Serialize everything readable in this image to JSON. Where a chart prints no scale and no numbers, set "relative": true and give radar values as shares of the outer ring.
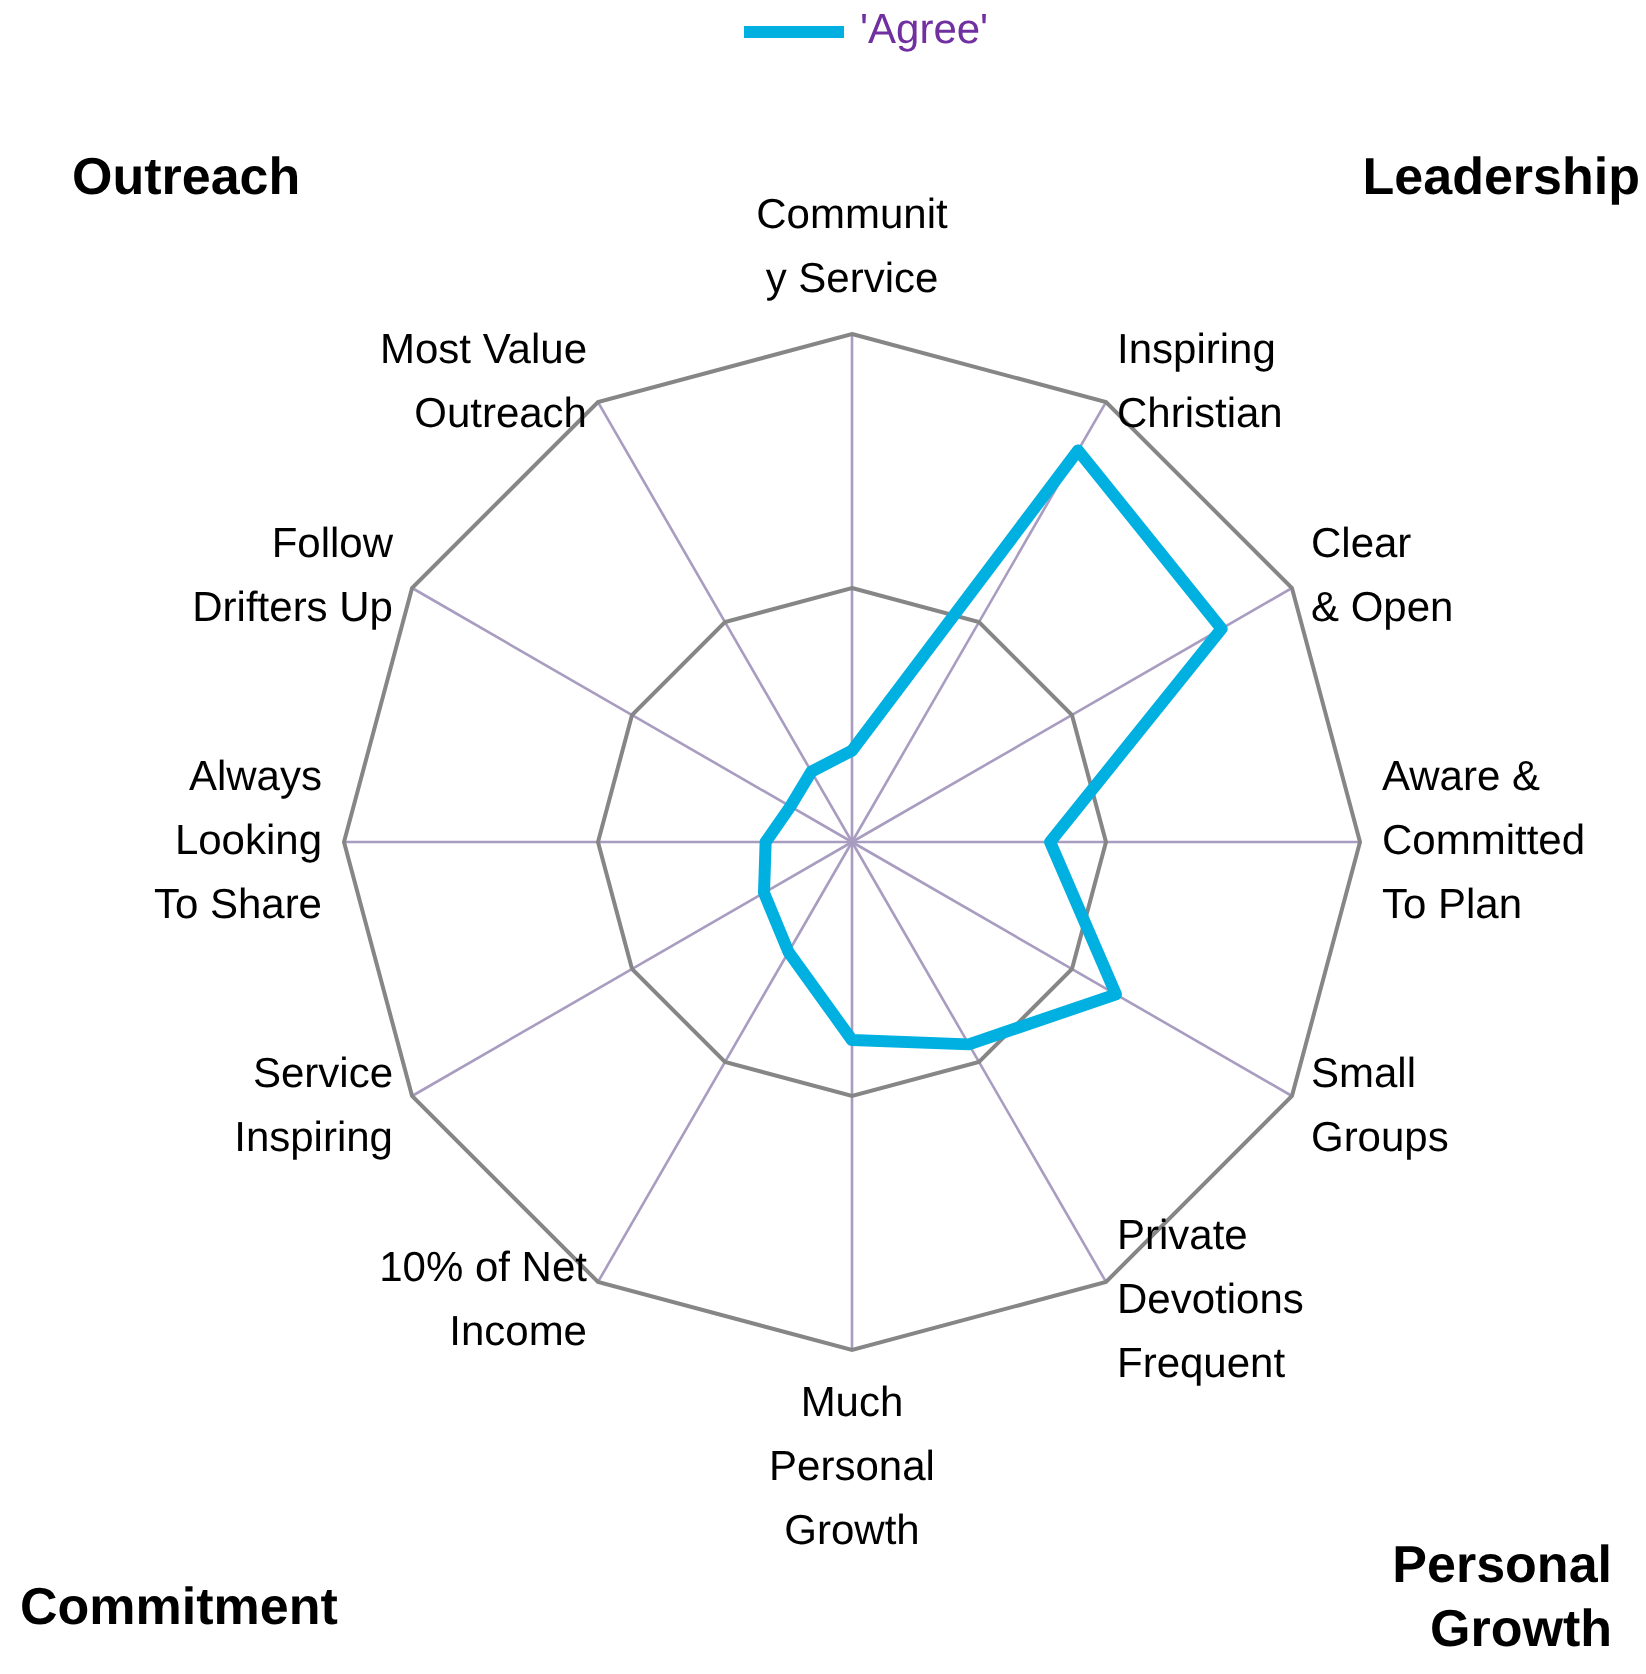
{
  "chart_data": {
    "type": "radar",
    "relative": true,
    "grid": true,
    "legend": "top",
    "categories": [
      "Communit\ny Service",
      "Inspiring\nChristian",
      "Clear\n& Open",
      "Aware &\nCommitted\nTo Plan",
      "Small\nGroups",
      "Private\nDevotions\nFrequent",
      "Much\nPersonal\nGrowth",
      "10% of Net\nIncome",
      "Service\nInspiring",
      "Always\nLooking\nTo Share",
      "Follow\nDrifters Up",
      "Most Value\nOutreach"
    ],
    "series": [
      {
        "name": "'Agree'",
        "color": "#00b0e0",
        "values": [
          0.18,
          0.89,
          0.84,
          0.39,
          0.6,
          0.46,
          0.39,
          0.25,
          0.2,
          0.17,
          0.14,
          0.16
        ]
      }
    ],
    "annotations": [
      "Outreach",
      "Leadership",
      "Commitment",
      "Personal\nGrowth"
    ]
  }
}
